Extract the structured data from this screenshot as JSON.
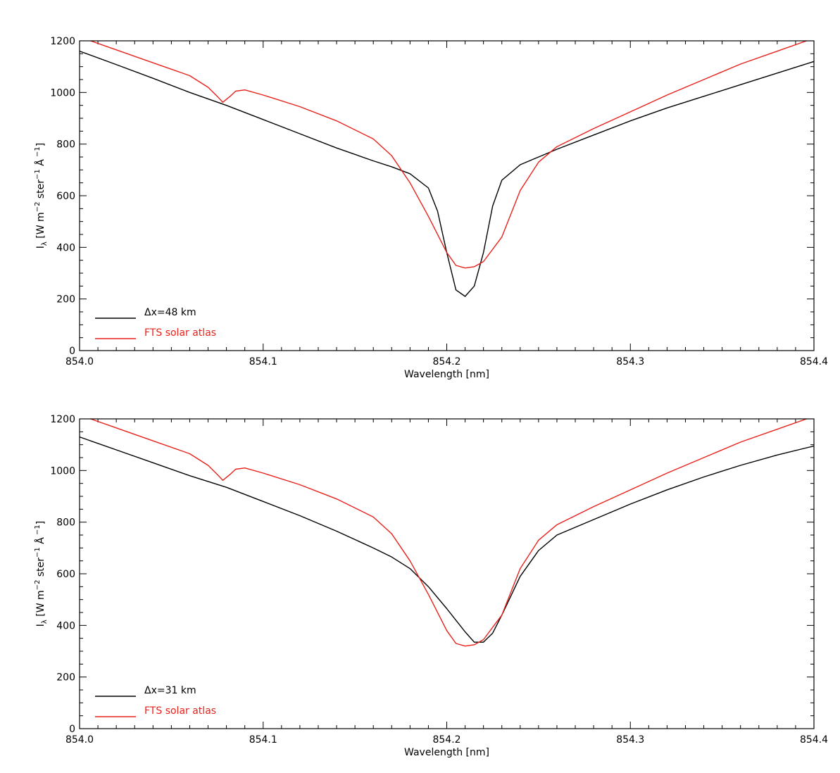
{
  "chart_data": [
    {
      "type": "line",
      "xlabel": "Wavelength [nm]",
      "ylabel_main": "I",
      "ylabel_sub": "λ",
      "ylabel_rest": " [W m",
      "ylabel_exp1": "−2",
      "ylabel_mid": " ster",
      "ylabel_exp2": "−1",
      "ylabel_unit": " Å",
      "ylabel_exp3": " −1",
      "ylabel_close": "]",
      "xlim": [
        854.0,
        854.4
      ],
      "ylim": [
        0,
        1200
      ],
      "x_ticks": [
        "854.0",
        "854.1",
        "854.2",
        "854.3",
        "854.4"
      ],
      "y_ticks": [
        "0",
        "200",
        "400",
        "600",
        "800",
        "1000",
        "1200"
      ],
      "legend_position": "bottom-left",
      "series": [
        {
          "name": "Δx=48 km",
          "color": "#000000",
          "x": [
            854.0,
            854.02,
            854.04,
            854.06,
            854.08,
            854.1,
            854.12,
            854.14,
            854.16,
            854.17,
            854.18,
            854.19,
            854.195,
            854.2,
            854.205,
            854.21,
            854.215,
            854.22,
            854.225,
            854.23,
            854.24,
            854.26,
            854.28,
            854.3,
            854.32,
            854.34,
            854.36,
            854.38,
            854.4
          ],
          "y": [
            1160,
            1108,
            1055,
            1000,
            950,
            895,
            840,
            785,
            735,
            712,
            685,
            630,
            540,
            380,
            235,
            210,
            250,
            380,
            560,
            660,
            720,
            780,
            835,
            890,
            940,
            985,
            1030,
            1075,
            1120
          ]
        },
        {
          "name": "FTS solar atlas",
          "color": "#e8211b",
          "x": [
            854.0,
            854.02,
            854.04,
            854.06,
            854.07,
            854.075,
            854.078,
            854.082,
            854.085,
            854.09,
            854.1,
            854.12,
            854.14,
            854.16,
            854.17,
            854.18,
            854.19,
            854.2,
            854.205,
            854.21,
            854.215,
            854.22,
            854.23,
            854.24,
            854.25,
            854.26,
            854.28,
            854.3,
            854.32,
            854.34,
            854.36,
            854.38,
            854.4
          ],
          "y": [
            1215,
            1165,
            1115,
            1065,
            1020,
            985,
            962,
            985,
            1005,
            1010,
            990,
            945,
            890,
            820,
            755,
            650,
            520,
            380,
            330,
            320,
            325,
            345,
            440,
            620,
            730,
            790,
            860,
            925,
            990,
            1050,
            1110,
            1160,
            1210
          ]
        }
      ]
    },
    {
      "type": "line",
      "xlabel": "Wavelength [nm]",
      "ylabel_main": "I",
      "ylabel_sub": "λ",
      "ylabel_rest": " [W m",
      "ylabel_exp1": "−2",
      "ylabel_mid": " ster",
      "ylabel_exp2": "−1",
      "ylabel_unit": " Å",
      "ylabel_exp3": " −1",
      "ylabel_close": "]",
      "xlim": [
        854.0,
        854.4
      ],
      "ylim": [
        0,
        1200
      ],
      "x_ticks": [
        "854.0",
        "854.1",
        "854.2",
        "854.3",
        "854.4"
      ],
      "y_ticks": [
        "0",
        "200",
        "400",
        "600",
        "800",
        "1000",
        "1200"
      ],
      "legend_position": "bottom-left",
      "series": [
        {
          "name": "Δx=31 km",
          "color": "#000000",
          "x": [
            854.0,
            854.02,
            854.04,
            854.06,
            854.08,
            854.1,
            854.12,
            854.14,
            854.16,
            854.17,
            854.18,
            854.19,
            854.2,
            854.21,
            854.215,
            854.22,
            854.225,
            854.23,
            854.24,
            854.25,
            854.26,
            854.28,
            854.3,
            854.32,
            854.34,
            854.36,
            854.38,
            854.4
          ],
          "y": [
            1130,
            1080,
            1030,
            980,
            935,
            880,
            825,
            765,
            700,
            665,
            620,
            550,
            465,
            375,
            335,
            335,
            370,
            440,
            590,
            690,
            750,
            810,
            870,
            925,
            975,
            1020,
            1060,
            1095
          ]
        },
        {
          "name": "FTS solar atlas",
          "color": "#e8211b",
          "x": [
            854.0,
            854.02,
            854.04,
            854.06,
            854.07,
            854.075,
            854.078,
            854.082,
            854.085,
            854.09,
            854.1,
            854.12,
            854.14,
            854.16,
            854.17,
            854.18,
            854.19,
            854.2,
            854.205,
            854.21,
            854.215,
            854.22,
            854.23,
            854.24,
            854.25,
            854.26,
            854.28,
            854.3,
            854.32,
            854.34,
            854.36,
            854.38,
            854.4
          ],
          "y": [
            1215,
            1165,
            1115,
            1065,
            1020,
            985,
            962,
            985,
            1005,
            1010,
            990,
            945,
            890,
            820,
            755,
            650,
            520,
            380,
            330,
            320,
            325,
            345,
            440,
            620,
            730,
            790,
            860,
            925,
            990,
            1050,
            1110,
            1160,
            1210
          ]
        }
      ]
    }
  ]
}
